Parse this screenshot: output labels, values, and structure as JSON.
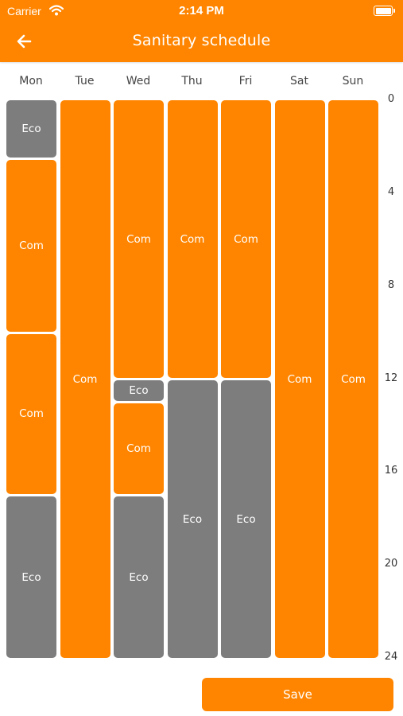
{
  "status_bar": {
    "carrier": "Carrier",
    "time": "2:14 PM"
  },
  "header": {
    "title": "Sanitary schedule"
  },
  "days": [
    "Mon",
    "Tue",
    "Wed",
    "Thu",
    "Fri",
    "Sat",
    "Sun"
  ],
  "hour_ticks": [
    "0",
    "4",
    "8",
    "12",
    "16",
    "20",
    "24"
  ],
  "schedule": [
    {
      "day": "Mon",
      "blocks": [
        {
          "label": "Eco",
          "mode": "eco",
          "start": 0,
          "end": 2.5
        },
        {
          "label": "Com",
          "mode": "com",
          "start": 2.5,
          "end": 10
        },
        {
          "label": "Com",
          "mode": "com",
          "start": 10,
          "end": 17
        },
        {
          "label": "Eco",
          "mode": "eco",
          "start": 17,
          "end": 24
        }
      ]
    },
    {
      "day": "Tue",
      "blocks": [
        {
          "label": "Com",
          "mode": "com",
          "start": 0,
          "end": 24
        }
      ]
    },
    {
      "day": "Wed",
      "blocks": [
        {
          "label": "Com",
          "mode": "com",
          "start": 0,
          "end": 12
        },
        {
          "label": "Eco",
          "mode": "eco",
          "start": 12,
          "end": 13
        },
        {
          "label": "Com",
          "mode": "com",
          "start": 13,
          "end": 17
        },
        {
          "label": "Eco",
          "mode": "eco",
          "start": 17,
          "end": 24
        }
      ]
    },
    {
      "day": "Thu",
      "blocks": [
        {
          "label": "Com",
          "mode": "com",
          "start": 0,
          "end": 12
        },
        {
          "label": "Eco",
          "mode": "eco",
          "start": 12,
          "end": 24
        }
      ]
    },
    {
      "day": "Fri",
      "blocks": [
        {
          "label": "Com",
          "mode": "com",
          "start": 0,
          "end": 12
        },
        {
          "label": "Eco",
          "mode": "eco",
          "start": 12,
          "end": 24
        }
      ]
    },
    {
      "day": "Sat",
      "blocks": [
        {
          "label": "Com",
          "mode": "com",
          "start": 0,
          "end": 24
        }
      ]
    },
    {
      "day": "Sun",
      "blocks": [
        {
          "label": "Com",
          "mode": "com",
          "start": 0,
          "end": 24
        }
      ]
    }
  ],
  "actions": {
    "save_label": "Save"
  },
  "colors": {
    "accent": "#ff8500",
    "eco": "#7d7d7d",
    "background": "#ffffff"
  },
  "icons": {
    "back": "arrow-left-icon",
    "wifi": "wifi-icon",
    "battery": "battery-icon"
  }
}
